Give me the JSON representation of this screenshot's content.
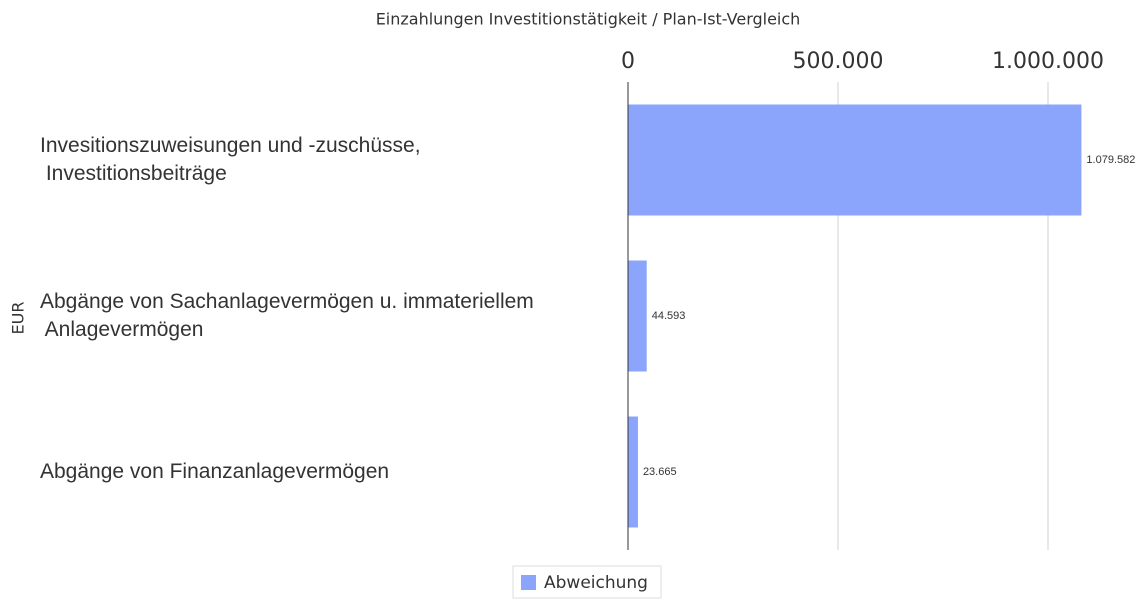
{
  "chart_data": {
    "type": "bar",
    "orientation": "horizontal",
    "title": "Einzahlungen Investitionstätigkeit / Plan-Ist-Vergleich",
    "y_label": "EUR",
    "categories": [
      "Invesitionszuweisungen und -zuschüsse,\n Investitionsbeiträge",
      "Abgänge von Sachanlagevermögen u. immateriellem\n Anlagevermögen",
      "Abgänge von Finanzanlagevermögen"
    ],
    "series": [
      {
        "name": "Abweichung",
        "color": "#8aa5fb",
        "values": [
          1079582,
          44593,
          23665
        ],
        "value_labels": [
          "1.079.582",
          "44.593",
          "23.665"
        ]
      }
    ],
    "xlim": [
      0,
      1100000
    ],
    "xticks": [
      0,
      {
        "value": 500000,
        "label": "500.000"
      },
      {
        "value": 1000000,
        "label": "1.000.000"
      }
    ],
    "grid": true,
    "legend": "bottom"
  }
}
